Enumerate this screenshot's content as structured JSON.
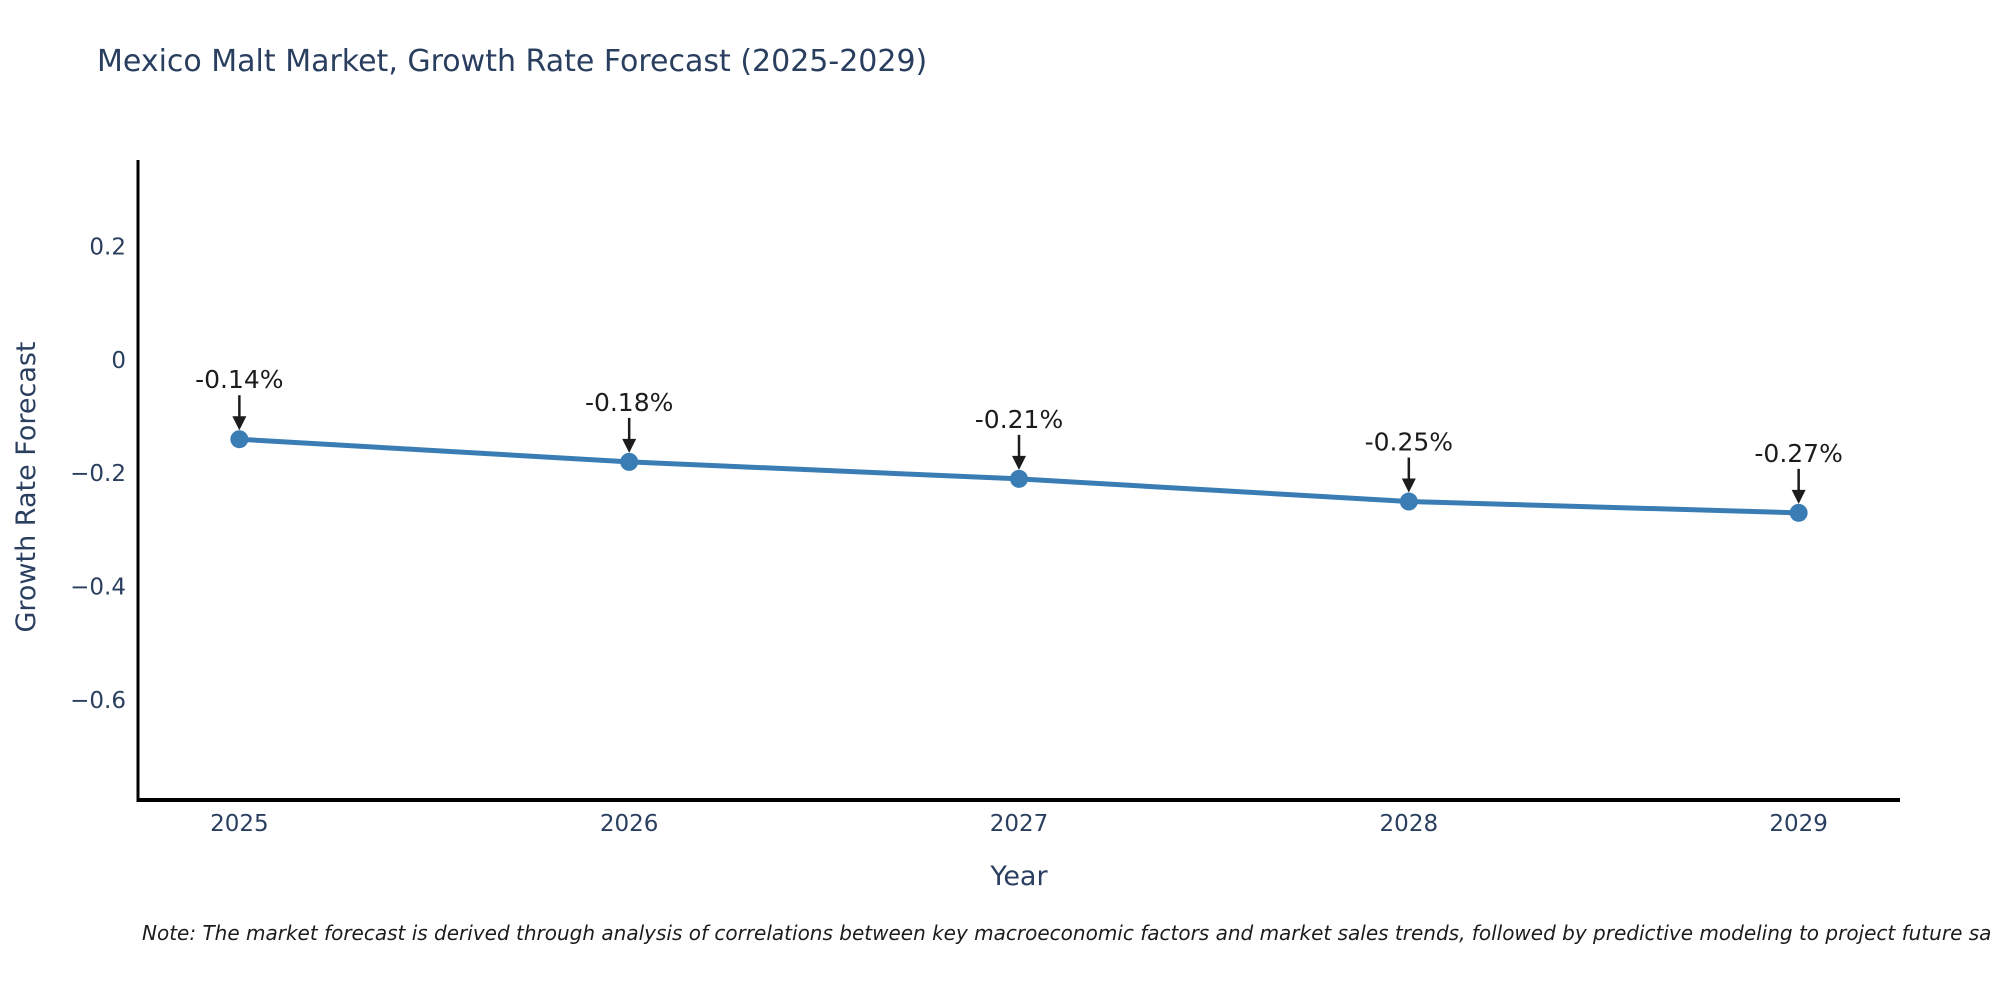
{
  "chart_data": {
    "type": "line",
    "title": "Mexico Malt Market, Growth Rate Forecast (2025-2029)",
    "x": [
      2025,
      2026,
      2027,
      2028,
      2029
    ],
    "xtick_labels": [
      "2025",
      "2026",
      "2027",
      "2028",
      "2029"
    ],
    "series": [
      {
        "name": "Growth Rate Forecast",
        "values": [
          -0.14,
          -0.18,
          -0.21,
          -0.25,
          -0.27
        ]
      }
    ],
    "point_labels": [
      "-0.14%",
      "-0.18%",
      "-0.21%",
      "-0.25%",
      "-0.27%"
    ],
    "xlabel": "Year",
    "ylabel": "Growth Rate Forecast",
    "yticks": [
      0.2,
      0,
      -0.2,
      -0.4,
      -0.6
    ],
    "ytick_labels": [
      "0.2",
      "0",
      "−0.2",
      "−0.4",
      "−0.6"
    ],
    "xlim": [
      2024.74,
      2029.26
    ],
    "ylim": [
      -0.777,
      0.353
    ],
    "grid": false,
    "legend": "none",
    "line_color": "#3a7db5",
    "marker_color": "#3a7db5",
    "axis_color": "#000000",
    "tick_text_color": "#2a3f5f",
    "annotation_color": "#1c1c1c"
  },
  "note": {
    "text": "Note: The market forecast is derived through analysis of correlations between key macroeconomic factors and market sales trends, followed by predictive modeling to project future sa"
  }
}
